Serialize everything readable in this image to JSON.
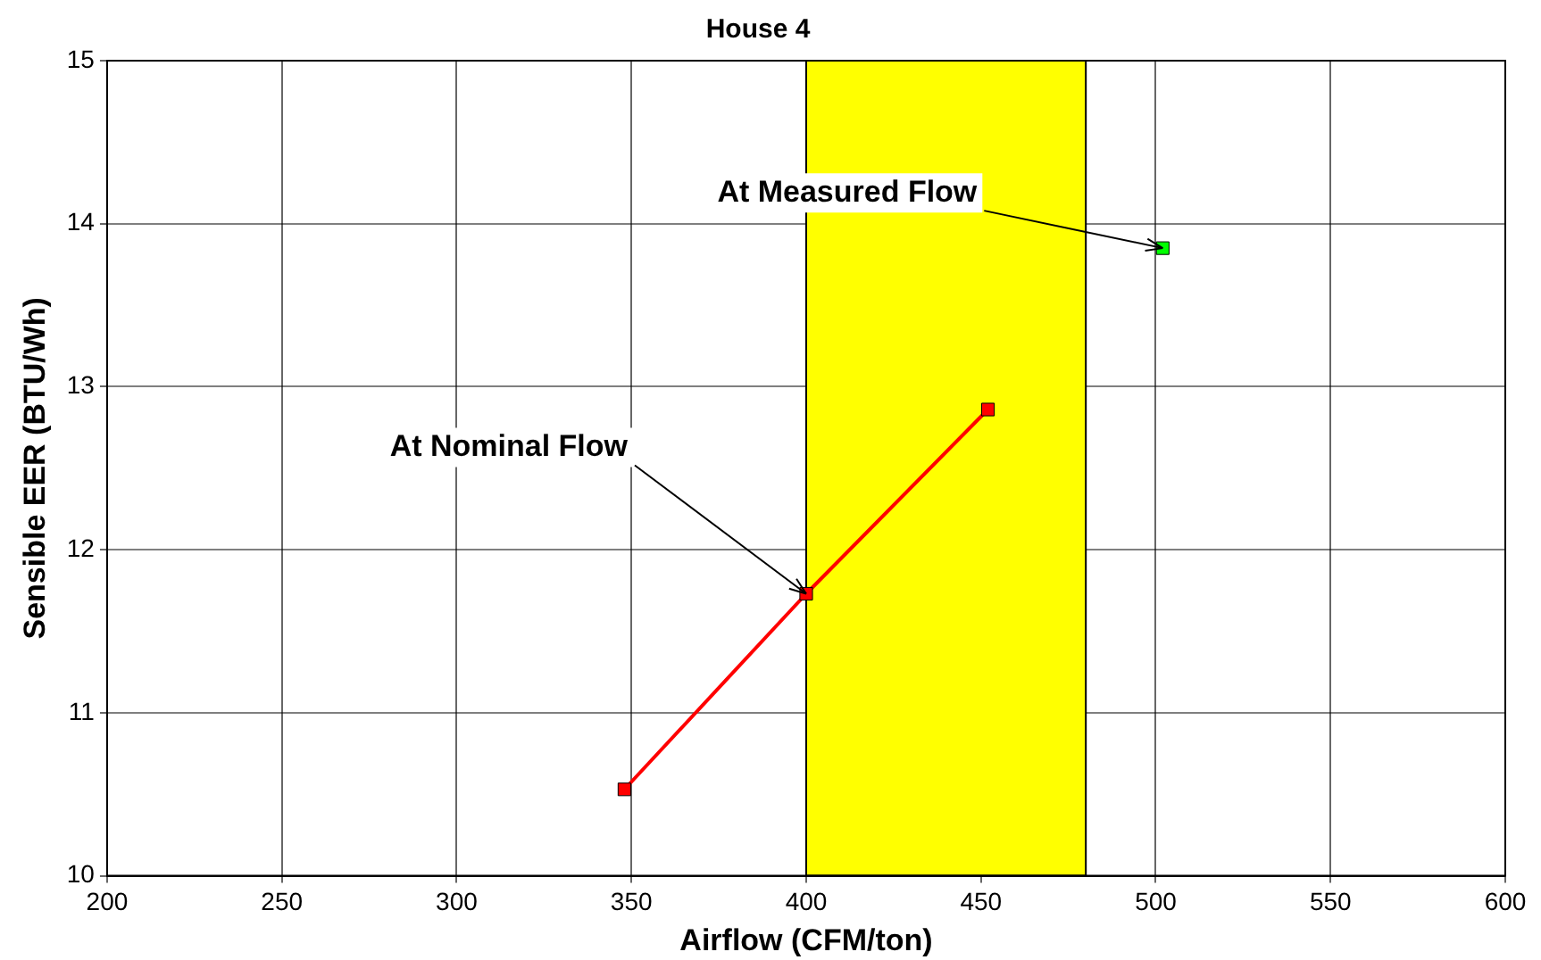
{
  "chart_data": {
    "type": "line",
    "title": "House 4",
    "xlabel": "Airflow (CFM/ton)",
    "ylabel": "Sensible EER (BTU/Wh)",
    "xlim": [
      200,
      600
    ],
    "xticks": [
      200,
      250,
      300,
      350,
      400,
      450,
      500,
      550,
      600
    ],
    "ylim": [
      10,
      15
    ],
    "yticks": [
      10,
      11,
      12,
      13,
      14,
      15
    ],
    "grid": true,
    "legend": false,
    "marker": "square",
    "line_style": "solid",
    "bands": [
      {
        "axis": "x",
        "from": 400,
        "to": 480,
        "color": "#ffff00"
      }
    ],
    "series": [
      {
        "type": "line",
        "color": "#ff0000",
        "x": [
          348,
          400,
          452
        ],
        "values": [
          10.53,
          11.73,
          12.86
        ]
      },
      {
        "type": "scatter",
        "color": "#00ff00",
        "x": [
          502
        ],
        "values": [
          13.85
        ]
      }
    ],
    "annotations": [
      {
        "text": "At Nominal Flow",
        "x": 400,
        "y": 11.73
      },
      {
        "text": "At Measured Flow",
        "x": 502,
        "y": 13.85
      }
    ]
  }
}
